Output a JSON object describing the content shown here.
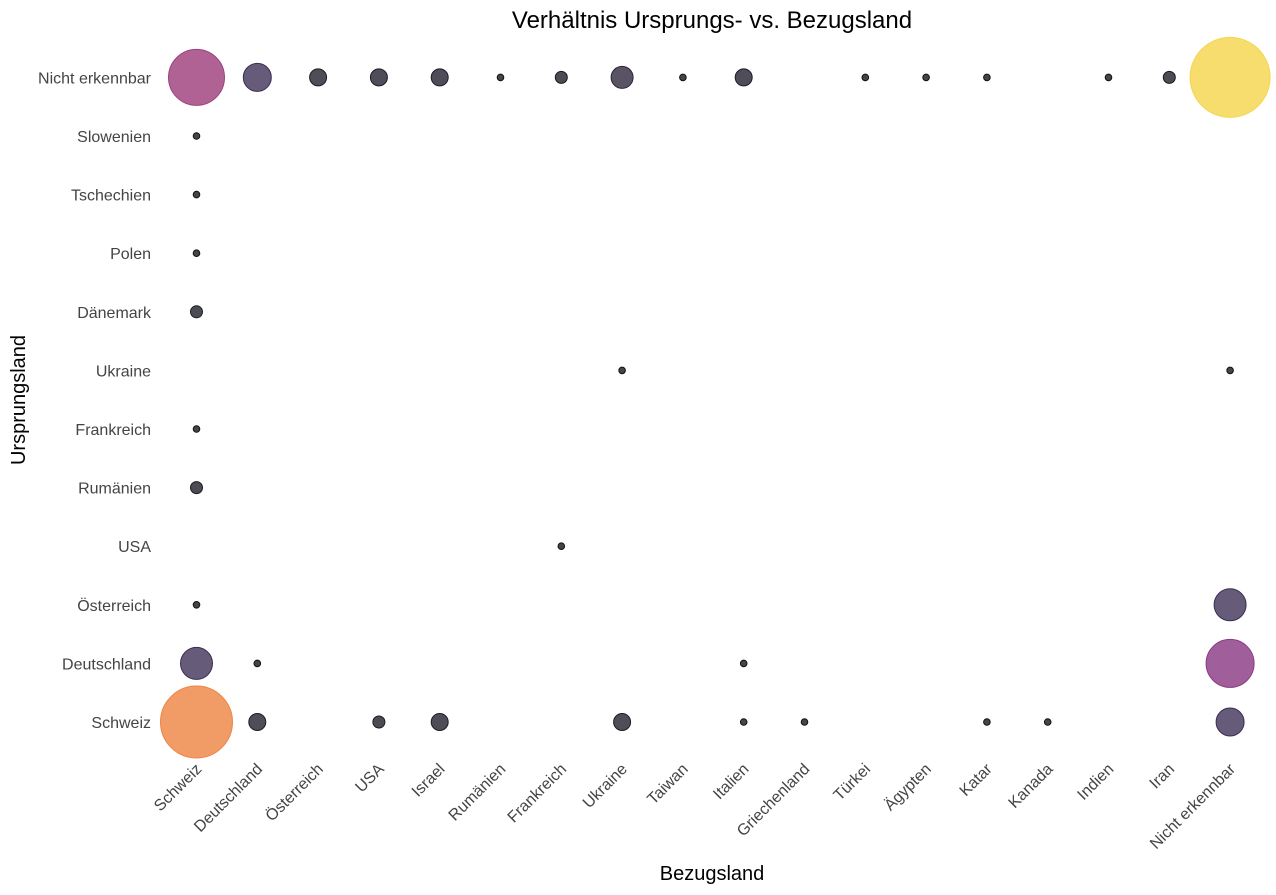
{
  "chart_data": {
    "type": "scatter",
    "subtype": "bubble",
    "title": "Verhältnis Ursprungs- vs. Bezugsland",
    "xlabel": "Bezugsland",
    "ylabel": "Ursprungsland",
    "x_categories": [
      "Schweiz",
      "Deutschland",
      "Österreich",
      "USA",
      "Israel",
      "Rumänien",
      "Frankreich",
      "Ukraine",
      "Taiwan",
      "Italien",
      "Griechenland",
      "Türkei",
      "Ägypten",
      "Katar",
      "Kanada",
      "Indien",
      "Iran",
      "Nicht erkennbar"
    ],
    "y_categories": [
      "Schweiz",
      "Deutschland",
      "Österreich",
      "USA",
      "Rumänien",
      "Frankreich",
      "Ukraine",
      "Dänemark",
      "Polen",
      "Tschechien",
      "Slowenien",
      "Nicht erkennbar"
    ],
    "grid": false,
    "legend": "none",
    "color_scale": "inferno-like (size-mapped)",
    "points": [
      {
        "x": "Schweiz",
        "y": "Nicht erkennbar",
        "count": 16,
        "color": "#a0407e"
      },
      {
        "x": "Deutschland",
        "y": "Nicht erkennbar",
        "count": 4,
        "color": "#3b2d52"
      },
      {
        "x": "Österreich",
        "y": "Nicht erkennbar",
        "count": 2,
        "color": "#1e1b28"
      },
      {
        "x": "USA",
        "y": "Nicht erkennbar",
        "count": 2,
        "color": "#1e1b28"
      },
      {
        "x": "Israel",
        "y": "Nicht erkennbar",
        "count": 2,
        "color": "#1e1b28"
      },
      {
        "x": "Rumänien",
        "y": "Nicht erkennbar",
        "count": 1,
        "color": "#111111"
      },
      {
        "x": "Frankreich",
        "y": "Nicht erkennbar",
        "count": 1.5,
        "color": "#1a1a22"
      },
      {
        "x": "Ukraine",
        "y": "Nicht erkennbar",
        "count": 3,
        "color": "#2b2338"
      },
      {
        "x": "Taiwan",
        "y": "Nicht erkennbar",
        "count": 1,
        "color": "#111111"
      },
      {
        "x": "Italien",
        "y": "Nicht erkennbar",
        "count": 2,
        "color": "#1e1b28"
      },
      {
        "x": "Türkei",
        "y": "Nicht erkennbar",
        "count": 1,
        "color": "#111111"
      },
      {
        "x": "Ägypten",
        "y": "Nicht erkennbar",
        "count": 1,
        "color": "#111111"
      },
      {
        "x": "Katar",
        "y": "Nicht erkennbar",
        "count": 1,
        "color": "#111111"
      },
      {
        "x": "Indien",
        "y": "Nicht erkennbar",
        "count": 1,
        "color": "#111111"
      },
      {
        "x": "Iran",
        "y": "Nicht erkennbar",
        "count": 1.5,
        "color": "#1a1a22"
      },
      {
        "x": "Nicht erkennbar",
        "y": "Nicht erkennbar",
        "count": 34,
        "color": "#f5d54e"
      },
      {
        "x": "Schweiz",
        "y": "Slowenien",
        "count": 1,
        "color": "#111111"
      },
      {
        "x": "Schweiz",
        "y": "Tschechien",
        "count": 1,
        "color": "#111111"
      },
      {
        "x": "Schweiz",
        "y": "Polen",
        "count": 1,
        "color": "#111111"
      },
      {
        "x": "Schweiz",
        "y": "Dänemark",
        "count": 1.5,
        "color": "#1a1a22"
      },
      {
        "x": "Ukraine",
        "y": "Ukraine",
        "count": 1,
        "color": "#111111"
      },
      {
        "x": "Nicht erkennbar",
        "y": "Ukraine",
        "count": 1,
        "color": "#111111"
      },
      {
        "x": "Schweiz",
        "y": "Frankreich",
        "count": 1,
        "color": "#111111"
      },
      {
        "x": "Schweiz",
        "y": "Rumänien",
        "count": 1.5,
        "color": "#1a1a22"
      },
      {
        "x": "Frankreich",
        "y": "USA",
        "count": 1,
        "color": "#111111"
      },
      {
        "x": "Schweiz",
        "y": "Österreich",
        "count": 1,
        "color": "#111111"
      },
      {
        "x": "Nicht erkennbar",
        "y": "Österreich",
        "count": 5,
        "color": "#3b2d52"
      },
      {
        "x": "Schweiz",
        "y": "Deutschland",
        "count": 5,
        "color": "#3b2d52"
      },
      {
        "x": "Deutschland",
        "y": "Deutschland",
        "count": 1,
        "color": "#111111"
      },
      {
        "x": "Italien",
        "y": "Deutschland",
        "count": 1,
        "color": "#111111"
      },
      {
        "x": "Nicht erkennbar",
        "y": "Deutschland",
        "count": 12,
        "color": "#8b3a85"
      },
      {
        "x": "Schweiz",
        "y": "Schweiz",
        "count": 30,
        "color": "#ee8545"
      },
      {
        "x": "Deutschland",
        "y": "Schweiz",
        "count": 2,
        "color": "#1e1b28"
      },
      {
        "x": "USA",
        "y": "Schweiz",
        "count": 1.5,
        "color": "#1a1a22"
      },
      {
        "x": "Israel",
        "y": "Schweiz",
        "count": 2,
        "color": "#1e1b28"
      },
      {
        "x": "Ukraine",
        "y": "Schweiz",
        "count": 2,
        "color": "#1e1b28"
      },
      {
        "x": "Italien",
        "y": "Schweiz",
        "count": 1,
        "color": "#111111"
      },
      {
        "x": "Griechenland",
        "y": "Schweiz",
        "count": 1,
        "color": "#111111"
      },
      {
        "x": "Katar",
        "y": "Schweiz",
        "count": 1,
        "color": "#111111"
      },
      {
        "x": "Kanada",
        "y": "Schweiz",
        "count": 1,
        "color": "#111111"
      },
      {
        "x": "Nicht erkennbar",
        "y": "Schweiz",
        "count": 4,
        "color": "#3b2d52"
      }
    ]
  }
}
